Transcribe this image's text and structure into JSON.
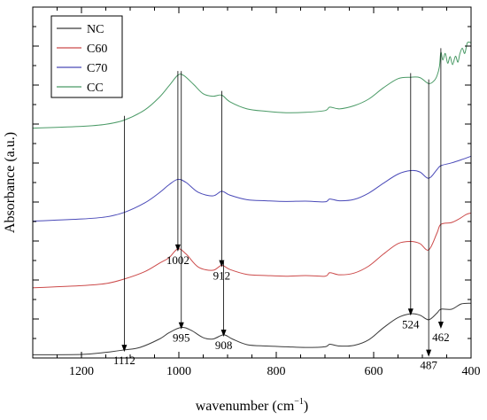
{
  "chart_data": {
    "type": "line",
    "xlabel_main": "wavenumber (cm",
    "xlabel_sup": "−1",
    "xlabel_end": ")",
    "ylabel": "Absorbance (a.u.)",
    "xlim": [
      1300,
      400
    ],
    "x_reversed": true,
    "xticks": [
      1200,
      1000,
      800,
      600,
      400
    ],
    "legend_position": "top-left",
    "colors": {
      "NC": "#3a3a3a",
      "C60": "#cc4a4a",
      "C70": "#4a4ab8",
      "CC": "#4a9a66"
    },
    "series": [
      {
        "name": "NC",
        "points": [
          [
            1300,
            0.92
          ],
          [
            1200,
            1.02
          ],
          [
            1150,
            1.6
          ],
          [
            1112,
            2.3
          ],
          [
            1080,
            3.0
          ],
          [
            1040,
            5.4
          ],
          [
            1020,
            7.2
          ],
          [
            995,
            8.7
          ],
          [
            975,
            7.9
          ],
          [
            950,
            5.8
          ],
          [
            930,
            5.4
          ],
          [
            908,
            6.6
          ],
          [
            890,
            5.4
          ],
          [
            860,
            3.8
          ],
          [
            820,
            3.4
          ],
          [
            780,
            3.2
          ],
          [
            740,
            3.0
          ],
          [
            700,
            3.2
          ],
          [
            690,
            3.9
          ],
          [
            670,
            3.4
          ],
          [
            640,
            3.6
          ],
          [
            610,
            5.2
          ],
          [
            580,
            8.6
          ],
          [
            550,
            11.5
          ],
          [
            524,
            12.6
          ],
          [
            505,
            12.2
          ],
          [
            487,
            10.9
          ],
          [
            470,
            12.8
          ],
          [
            462,
            13.9
          ],
          [
            440,
            13.9
          ],
          [
            420,
            15.4
          ],
          [
            400,
            15.6
          ]
        ]
      },
      {
        "name": "C60",
        "points": [
          [
            1300,
            20.0
          ],
          [
            1200,
            20.6
          ],
          [
            1150,
            21.2
          ],
          [
            1112,
            22.5
          ],
          [
            1070,
            24.6
          ],
          [
            1040,
            27.0
          ],
          [
            1020,
            28.6
          ],
          [
            1002,
            31.1
          ],
          [
            985,
            29.6
          ],
          [
            960,
            25.9
          ],
          [
            930,
            25.0
          ],
          [
            912,
            26.4
          ],
          [
            895,
            25.2
          ],
          [
            860,
            23.8
          ],
          [
            820,
            23.5
          ],
          [
            780,
            23.3
          ],
          [
            740,
            23.5
          ],
          [
            700,
            23.3
          ],
          [
            690,
            24.3
          ],
          [
            670,
            23.7
          ],
          [
            640,
            24.2
          ],
          [
            610,
            26.2
          ],
          [
            580,
            29.6
          ],
          [
            550,
            32.6
          ],
          [
            524,
            33.2
          ],
          [
            505,
            32.6
          ],
          [
            487,
            30.8
          ],
          [
            470,
            35.6
          ],
          [
            462,
            38.1
          ],
          [
            440,
            38.6
          ],
          [
            425,
            39.6
          ],
          [
            410,
            40.9
          ],
          [
            400,
            41.3
          ]
        ]
      },
      {
        "name": "C70",
        "points": [
          [
            1300,
            39.0
          ],
          [
            1200,
            39.6
          ],
          [
            1150,
            40.2
          ],
          [
            1112,
            41.5
          ],
          [
            1070,
            44.2
          ],
          [
            1040,
            47.1
          ],
          [
            1020,
            49.4
          ],
          [
            1002,
            50.9
          ],
          [
            985,
            50.0
          ],
          [
            960,
            47.2
          ],
          [
            930,
            46.2
          ],
          [
            912,
            47.5
          ],
          [
            895,
            46.4
          ],
          [
            860,
            45.1
          ],
          [
            820,
            44.8
          ],
          [
            780,
            44.6
          ],
          [
            740,
            44.7
          ],
          [
            700,
            44.5
          ],
          [
            690,
            45.3
          ],
          [
            670,
            44.8
          ],
          [
            640,
            45.2
          ],
          [
            610,
            47.0
          ],
          [
            580,
            49.8
          ],
          [
            550,
            52.4
          ],
          [
            524,
            53.4
          ],
          [
            505,
            53.0
          ],
          [
            487,
            51.2
          ],
          [
            470,
            53.7
          ],
          [
            462,
            54.8
          ],
          [
            440,
            55.6
          ],
          [
            420,
            56.5
          ],
          [
            400,
            57.5
          ]
        ]
      },
      {
        "name": "CC",
        "points": [
          [
            1300,
            65.5
          ],
          [
            1200,
            66.0
          ],
          [
            1150,
            66.6
          ],
          [
            1112,
            67.8
          ],
          [
            1070,
            70.7
          ],
          [
            1040,
            74.3
          ],
          [
            1020,
            77.6
          ],
          [
            1002,
            80.6
          ],
          [
            990,
            80.5
          ],
          [
            970,
            78.0
          ],
          [
            950,
            75.3
          ],
          [
            930,
            74.6
          ],
          [
            912,
            74.9
          ],
          [
            895,
            73.0
          ],
          [
            860,
            71.0
          ],
          [
            820,
            70.3
          ],
          [
            780,
            69.9
          ],
          [
            740,
            70.0
          ],
          [
            700,
            70.5
          ],
          [
            690,
            71.5
          ],
          [
            670,
            71.0
          ],
          [
            640,
            71.9
          ],
          [
            610,
            73.8
          ],
          [
            580,
            77.0
          ],
          [
            550,
            79.6
          ],
          [
            524,
            80.0
          ],
          [
            505,
            79.9
          ],
          [
            487,
            78.2
          ],
          [
            476,
            79.0
          ],
          [
            470,
            80.4
          ],
          [
            465,
            83.0
          ],
          [
            462,
            87.1
          ],
          [
            458,
            84.9
          ],
          [
            453,
            86.8
          ],
          [
            448,
            84.0
          ],
          [
            443,
            85.9
          ],
          [
            438,
            83.6
          ],
          [
            432,
            86.0
          ],
          [
            427,
            84.3
          ],
          [
            423,
            86.7
          ],
          [
            418,
            88.3
          ],
          [
            413,
            86.8
          ],
          [
            408,
            89.7
          ],
          [
            404,
            90.0
          ],
          [
            400,
            89.8
          ]
        ]
      }
    ],
    "annotations": [
      {
        "label": "1112",
        "x": 1112,
        "from_series": "CC",
        "to_y": 2.0
      },
      {
        "label": "1002",
        "x": 1002,
        "from_series": "CC",
        "to_y": 30.6
      },
      {
        "label": "995",
        "x": 995,
        "from_series": "CC",
        "to_y": 8.4
      },
      {
        "label": "912",
        "x": 912,
        "from_series": "CC",
        "to_y": 26.1
      },
      {
        "label": "908",
        "x": 908,
        "from_series": "C60",
        "to_y": 6.3
      },
      {
        "label": "524",
        "x": 524,
        "from_series": "CC",
        "to_y": 12.3
      },
      {
        "label": "487",
        "x": 487,
        "from_series": "CC",
        "to_y": 0.6
      },
      {
        "label": "462",
        "x": 462,
        "from_series": "CC",
        "to_y": 8.6
      }
    ]
  }
}
